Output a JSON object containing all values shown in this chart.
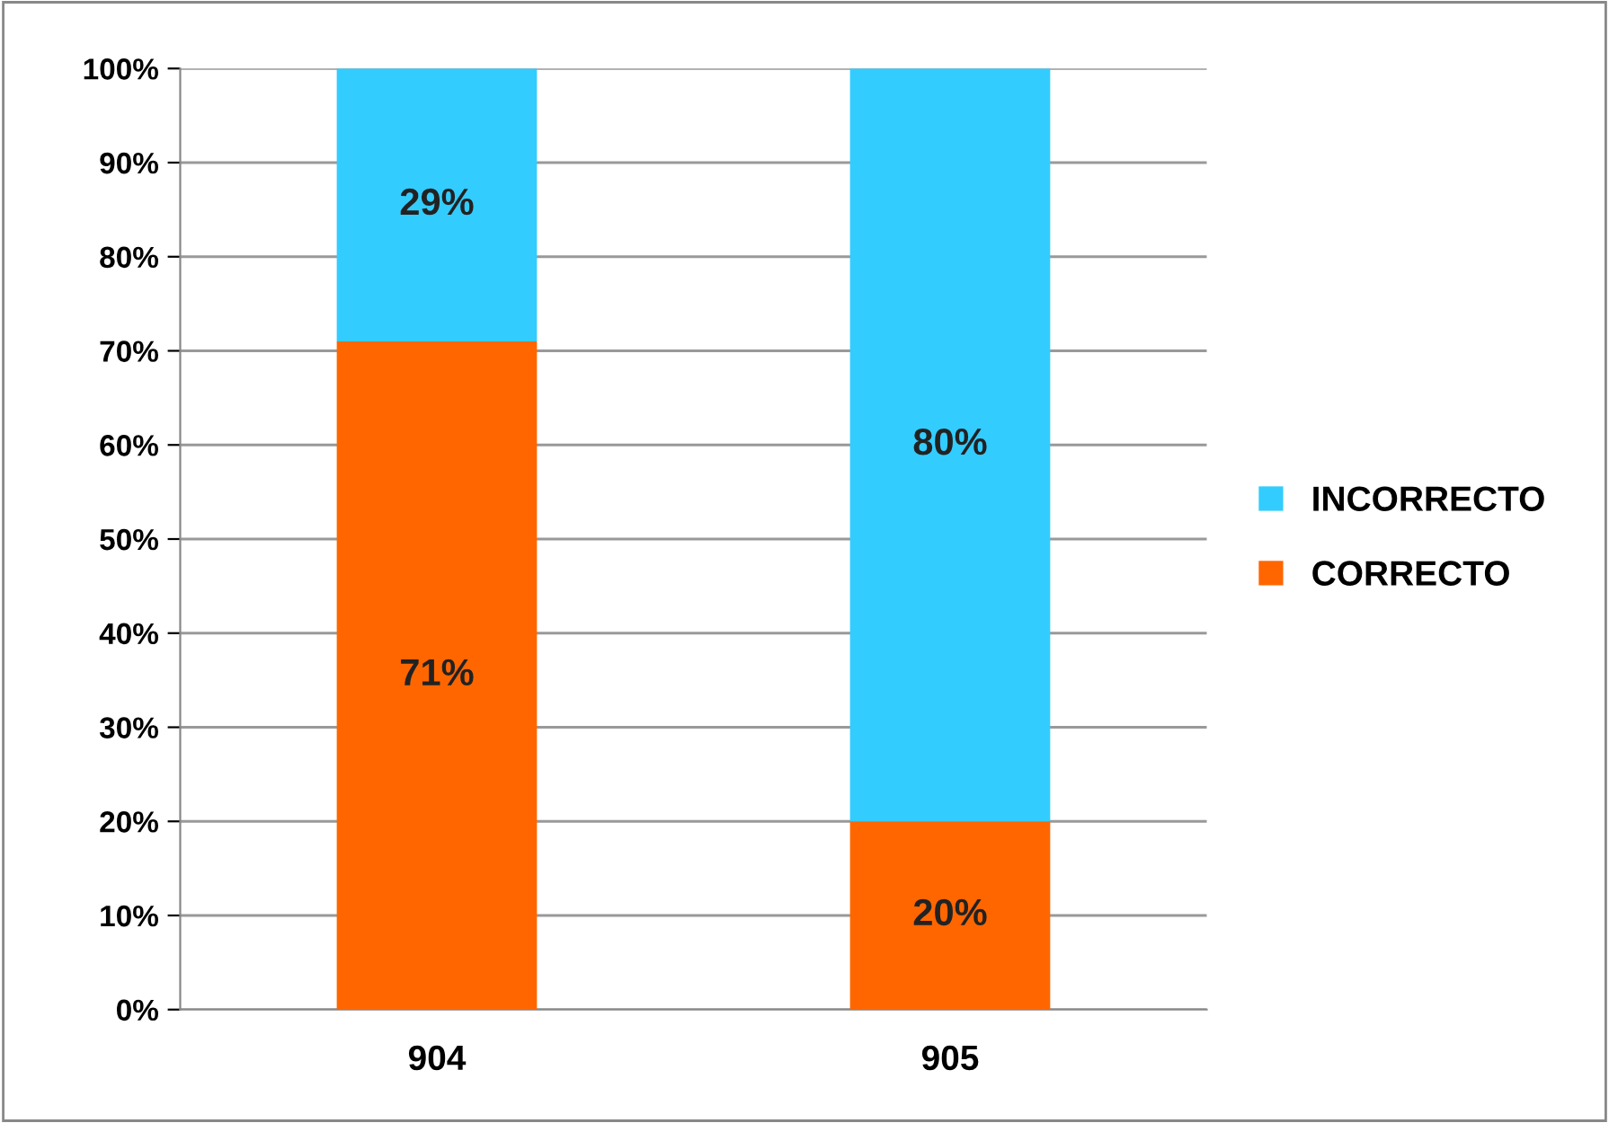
{
  "chart_data": {
    "type": "bar",
    "stacked": true,
    "categories": [
      "904",
      "905"
    ],
    "series": [
      {
        "name": "CORRECTO",
        "color": "#ff6600",
        "values": [
          71,
          20
        ],
        "value_labels": [
          "71%",
          "20%"
        ]
      },
      {
        "name": "INCORRECTO",
        "color": "#33ccff",
        "values": [
          29,
          80
        ],
        "value_labels": [
          "29%",
          "80%"
        ]
      }
    ],
    "ylim": [
      0,
      100
    ],
    "yticks": [
      {
        "value": 0,
        "label": "0%"
      },
      {
        "value": 10,
        "label": "10%"
      },
      {
        "value": 20,
        "label": "20%"
      },
      {
        "value": 30,
        "label": "30%"
      },
      {
        "value": 40,
        "label": "40%"
      },
      {
        "value": 50,
        "label": "50%"
      },
      {
        "value": 60,
        "label": "60%"
      },
      {
        "value": 70,
        "label": "70%"
      },
      {
        "value": 80,
        "label": "80%"
      },
      {
        "value": 90,
        "label": "90%"
      },
      {
        "value": 100,
        "label": "100%"
      }
    ],
    "grid": "y",
    "legend": "right"
  }
}
